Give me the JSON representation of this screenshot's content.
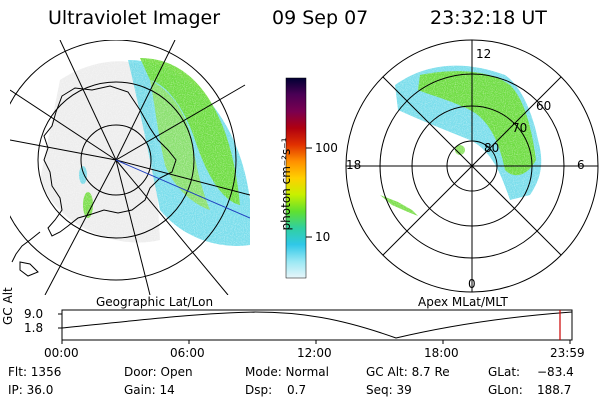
{
  "header": {
    "instrument": "Ultraviolet Imager",
    "date": "09 Sep 07",
    "time": "23:32:18 UT"
  },
  "left_panel": {
    "label": "Geographic Lat/Lon"
  },
  "right_panel": {
    "label": "Apex MLat/MLT",
    "mlt_labels": {
      "top": "12",
      "right": "6",
      "bottom": "0",
      "left": "18"
    },
    "lat_labels": [
      "60",
      "70",
      "80"
    ]
  },
  "colorbar": {
    "unit": "photon cm⁻²s⁻¹",
    "ticks": [
      "100",
      "10"
    ],
    "colors": [
      "#000033",
      "#4b0055",
      "#7a0050",
      "#b00010",
      "#e03000",
      "#ff9000",
      "#ffd000",
      "#c8f000",
      "#60e030",
      "#30d0a0",
      "#30c8e8",
      "#9ae8f4",
      "#e8f6fa"
    ]
  },
  "timeline": {
    "ylabel": "GC Alt",
    "y_ticks": [
      "9.0",
      "1.8"
    ],
    "x_ticks": [
      "00:00",
      "06:00",
      "12:00",
      "18:00",
      "23:59"
    ],
    "marker_color": "#cc0000"
  },
  "status": {
    "flt": "Flt: 1356",
    "ip": "IP: 36.0",
    "door": "Door: Open",
    "gain": "Gain: 14",
    "mode": "Mode: Normal",
    "dsp_label": "Dsp:",
    "dsp_value": "0.7",
    "gcalt": "GC Alt: 8.7 Re",
    "seq": "Seq: 39",
    "glat_label": "GLat:",
    "glat_value": "−83.4",
    "glon_label": "GLon:",
    "glon_value": "188.7"
  }
}
